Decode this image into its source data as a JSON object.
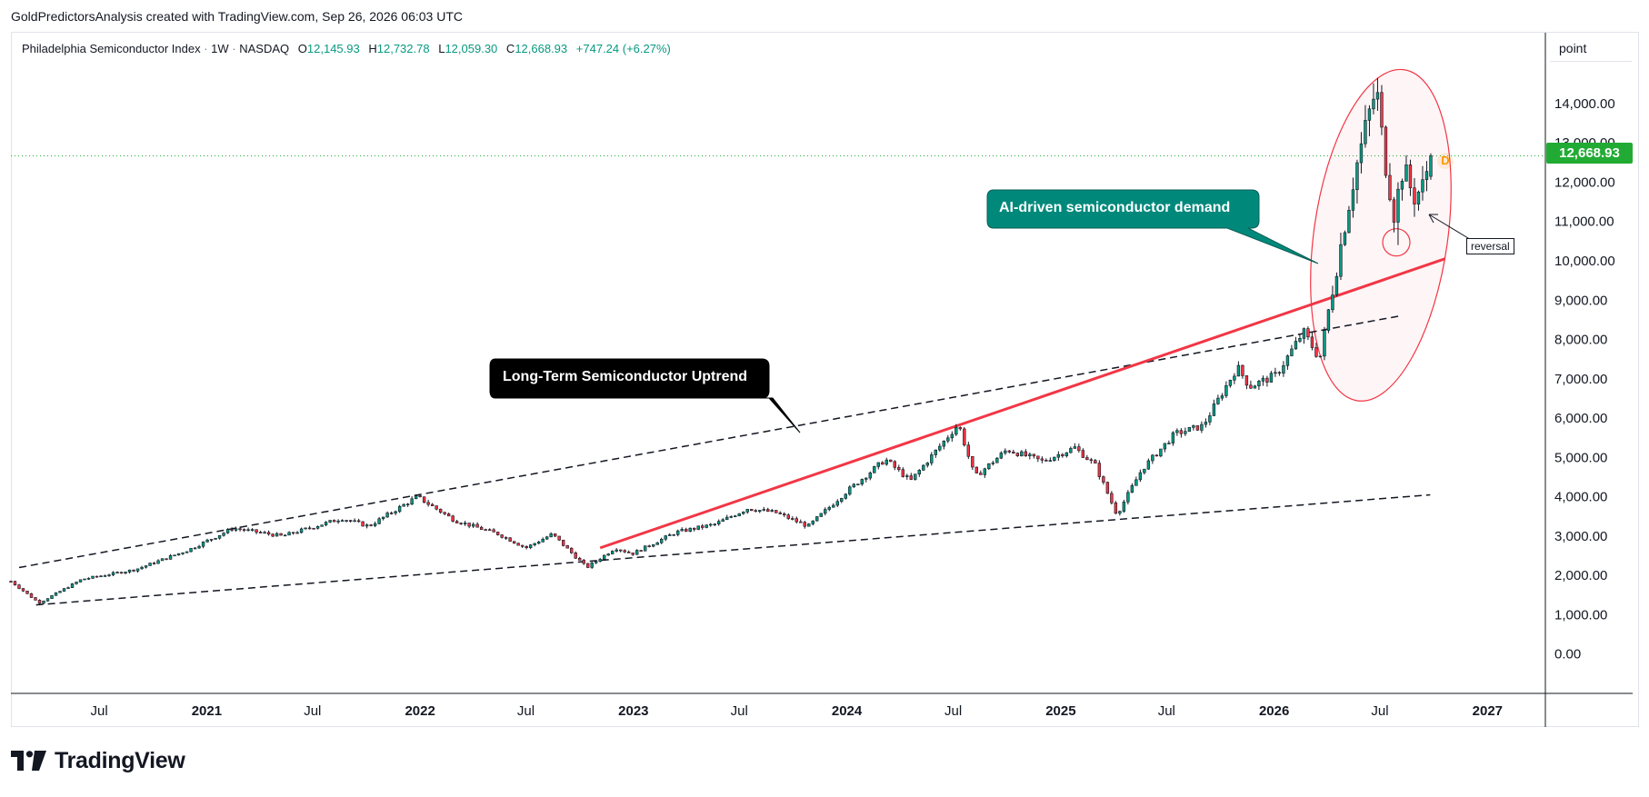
{
  "header": {
    "attribution": "GoldPredictorsAnalysis created with TradingView.com, Sep 26, 2026 06:03 UTC"
  },
  "legend": {
    "symbol": "Philadelphia Semiconductor Index",
    "interval": "1W",
    "exchange": "NASDAQ",
    "open_label": "O",
    "open": "12,145.93",
    "high_label": "H",
    "high": "12,732.78",
    "low_label": "L",
    "low": "12,059.30",
    "close_label": "C",
    "close": "12,668.93",
    "change": "+747.24 (+6.27%)"
  },
  "scale_unit": "point",
  "last_price": "12,668.93",
  "annotations": {
    "long_term": "Long-Term Semiconductor Uptrend",
    "ai_demand": "AI-driven semiconductor demand",
    "reversal": "reversal",
    "dividend_marker": "D"
  },
  "brand": "TradingView",
  "colors": {
    "up": "#089981",
    "down": "#f23645",
    "red_trend": "#f23645",
    "ai_callout": "#00897b",
    "uptrend_callout": "#000000",
    "last_price_tag": "#22ab34"
  },
  "chart_data": {
    "type": "candlestick",
    "interval": "1W",
    "ylim": [
      -1000,
      15800
    ],
    "y_ticks": [
      "0.00",
      "1,000.00",
      "2,000.00",
      "3,000.00",
      "4,000.00",
      "5,000.00",
      "6,000.00",
      "7,000.00",
      "8,000.00",
      "9,000.00",
      "10,000.00",
      "11,000.00",
      "12,000.00",
      "13,000.00",
      "14,000.00"
    ],
    "y_tick_values": [
      0,
      1000,
      2000,
      3000,
      4000,
      5000,
      6000,
      7000,
      8000,
      9000,
      10000,
      11000,
      12000,
      13000,
      14000
    ],
    "x_ticks": [
      "Jul",
      "2021",
      "Jul",
      "2022",
      "Jul",
      "2023",
      "Jul",
      "2024",
      "Jul",
      "2025",
      "Jul",
      "2026",
      "Jul",
      "2027"
    ],
    "x_tick_dates": [
      "2020-07-01",
      "2021-01-01",
      "2021-07-01",
      "2022-01-01",
      "2022-07-01",
      "2023-01-01",
      "2023-07-01",
      "2024-01-01",
      "2024-07-01",
      "2025-01-01",
      "2025-07-01",
      "2026-01-01",
      "2026-07-01",
      "2027-01-01"
    ],
    "x_range": [
      "2020-02-01",
      "2027-04-10"
    ],
    "price_anchors": [
      [
        "2020-02-01",
        1850
      ],
      [
        "2020-03-20",
        1300
      ],
      [
        "2020-06-01",
        1900
      ],
      [
        "2020-09-01",
        2150
      ],
      [
        "2020-12-01",
        2650
      ],
      [
        "2021-02-15",
        3200
      ],
      [
        "2021-05-10",
        3000
      ],
      [
        "2021-08-20",
        3450
      ],
      [
        "2021-10-05",
        3250
      ],
      [
        "2021-12-27",
        4000
      ],
      [
        "2022-03-01",
        3400
      ],
      [
        "2022-05-15",
        3050
      ],
      [
        "2022-07-01",
        2700
      ],
      [
        "2022-08-15",
        3050
      ],
      [
        "2022-10-13",
        2200
      ],
      [
        "2022-12-01",
        2700
      ],
      [
        "2022-12-30",
        2550
      ],
      [
        "2023-03-15",
        3100
      ],
      [
        "2023-05-20",
        3300
      ],
      [
        "2023-07-15",
        3700
      ],
      [
        "2023-09-01",
        3600
      ],
      [
        "2023-10-27",
        3250
      ],
      [
        "2023-12-29",
        4100
      ],
      [
        "2024-03-07",
        4950
      ],
      [
        "2024-04-19",
        4400
      ],
      [
        "2024-07-10",
        5850
      ],
      [
        "2024-08-07",
        4500
      ],
      [
        "2024-10-01",
        5200
      ],
      [
        "2024-12-01",
        4900
      ],
      [
        "2025-01-25",
        5250
      ],
      [
        "2025-03-01",
        4800
      ],
      [
        "2025-04-07",
        3550
      ],
      [
        "2025-05-20",
        4700
      ],
      [
        "2025-07-15",
        5600
      ],
      [
        "2025-09-01",
        5800
      ],
      [
        "2025-10-30",
        7300
      ],
      [
        "2025-11-20",
        6800
      ],
      [
        "2026-01-05",
        7100
      ],
      [
        "2026-02-20",
        8200
      ],
      [
        "2026-03-20",
        7500
      ],
      [
        "2026-04-05",
        8800
      ],
      [
        "2026-04-25",
        10400
      ],
      [
        "2026-05-20",
        12300
      ],
      [
        "2026-06-10",
        13600
      ],
      [
        "2026-06-25",
        14400
      ],
      [
        "2026-07-08",
        12700
      ],
      [
        "2026-07-25",
        11200
      ],
      [
        "2026-08-10",
        12400
      ],
      [
        "2026-08-28",
        11600
      ],
      [
        "2026-09-12",
        11900
      ],
      [
        "2026-09-26",
        12669
      ]
    ],
    "trendlines": [
      {
        "name": "upper-channel",
        "style": "dashed",
        "from": [
          "2020-02-15",
          2200
        ],
        "to": [
          "2026-08-05",
          8600
        ]
      },
      {
        "name": "lower-channel",
        "style": "dashed",
        "from": [
          "2020-03-15",
          1250
        ],
        "to": [
          "2026-09-25",
          4050
        ]
      },
      {
        "name": "long-term-support",
        "style": "solid-red",
        "from": [
          "2022-11-05",
          2700
        ],
        "to": [
          "2026-10-20",
          10050
        ]
      }
    ]
  }
}
